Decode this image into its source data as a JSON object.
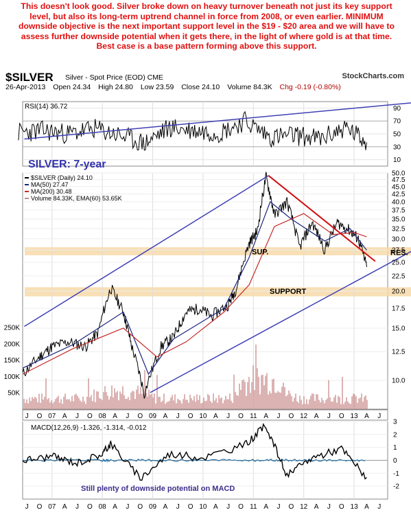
{
  "commentary": "This doesn't look good. Silver broke down on heavy turnover beneath not just its key support level, but also its long-term uptrend channel in force from 2008, or even earlier. MINIMUM downside objective is the next important support level in the $19 - $20 area and we will have to assess further downside potential when it gets there, in the light of where gold is at that time. Best case is a base pattern forming above this support.",
  "header": {
    "ticker": "$SILVER",
    "description": "Silver - Spot Price (EOD) CME",
    "brand": "StockCharts.com",
    "date": "26-Apr-2013",
    "open": "Open 24.34",
    "high": "High 24.80",
    "low": "Low 23.59",
    "close": "Close 24.10",
    "volume": "Volume 84.3K",
    "change": "Chg -0.19 (-0.80%)"
  },
  "colors": {
    "price": "#000000",
    "ma50": "#1a237e",
    "ma200": "#c62828",
    "trendline": "#3f3fb5",
    "resistance": "#d01010",
    "volume": "#c88a8a",
    "ema_volume": "#8b0000",
    "support_band": "#f7d9a8",
    "macd_signal": "#1f6fa8",
    "annotation_blue": "#3333b0"
  },
  "chart_data": [
    {
      "type": "line",
      "title": "RSI(14) 36.72",
      "yticks": [
        10,
        30,
        50,
        70,
        90
      ],
      "ylim": [
        0,
        100
      ],
      "series": [
        {
          "name": "RSI(14)",
          "x": [
            "2006-05",
            "2006-11",
            "2007-05",
            "2007-11",
            "2008-05",
            "2008-11",
            "2009-05",
            "2009-11",
            "2010-05",
            "2010-11",
            "2011-05",
            "2011-11",
            "2012-05",
            "2012-11",
            "2013-04"
          ],
          "values": [
            52,
            55,
            50,
            58,
            48,
            35,
            60,
            55,
            52,
            70,
            45,
            48,
            42,
            60,
            36.72
          ]
        }
      ]
    },
    {
      "type": "line",
      "title": "$SILVER (Daily) 24.10",
      "ylim": [
        8,
        50
      ],
      "yscale": "log",
      "yticks": [
        10.0,
        12.5,
        15.0,
        17.5,
        20.0,
        22.5,
        25.0,
        27.5,
        30.0,
        32.5,
        35.0,
        37.5,
        40.0,
        42.5,
        45.0,
        47.5,
        50.0
      ],
      "volume_ticks": [
        "50K",
        "100K",
        "150K",
        "200K",
        "250K"
      ],
      "x_labels": [
        "J",
        "O",
        "07",
        "A",
        "J",
        "O",
        "08",
        "A",
        "J",
        "O",
        "09",
        "A",
        "J",
        "O",
        "10",
        "A",
        "J",
        "O",
        "11",
        "A",
        "J",
        "O",
        "12",
        "A",
        "J",
        "O",
        "13",
        "A",
        "J"
      ],
      "legend": [
        "$SILVER (Daily) 24.10",
        "MA(50) 27.47",
        "MA(200) 30.48",
        "Volume 84.33K, EMA(60) 53.65K"
      ],
      "annotations": {
        "title": "SILVER: 7-year",
        "sup": "SUP.",
        "res": "RES.",
        "support": "SUPPORT"
      },
      "series": [
        {
          "name": "$SILVER (Daily)",
          "x": [
            "2006-06",
            "2006-10",
            "2007-01",
            "2007-05",
            "2007-09",
            "2007-12",
            "2008-03",
            "2008-06",
            "2008-08",
            "2008-11",
            "2009-03",
            "2009-06",
            "2009-09",
            "2009-12",
            "2010-03",
            "2010-07",
            "2010-09",
            "2010-12",
            "2011-02",
            "2011-04",
            "2011-06",
            "2011-09",
            "2011-12",
            "2012-03",
            "2012-06",
            "2012-09",
            "2012-12",
            "2013-02",
            "2013-04"
          ],
          "values": [
            10.5,
            12.0,
            13.0,
            13.5,
            13.0,
            14.5,
            20.5,
            17.0,
            13.0,
            9.0,
            13.0,
            14.0,
            17.0,
            17.5,
            16.5,
            18.0,
            20.5,
            29.0,
            32.0,
            48.5,
            36.0,
            40.0,
            28.0,
            34.0,
            27.5,
            34.0,
            32.0,
            30.0,
            24.1
          ]
        },
        {
          "name": "MA(50)",
          "x": [
            "2006-06",
            "2007-06",
            "2008-06",
            "2008-12",
            "2009-06",
            "2010-06",
            "2010-12",
            "2011-05",
            "2011-10",
            "2012-06",
            "2012-12",
            "2013-04"
          ],
          "values": [
            11.0,
            13.2,
            17.0,
            10.5,
            13.8,
            17.5,
            26.0,
            40.0,
            35.0,
            29.5,
            32.5,
            27.47
          ]
        },
        {
          "name": "MA(200)",
          "x": [
            "2006-06",
            "2007-06",
            "2008-06",
            "2009-02",
            "2009-09",
            "2010-06",
            "2010-12",
            "2011-06",
            "2012-01",
            "2012-08",
            "2013-01",
            "2013-04"
          ],
          "values": [
            10.5,
            12.8,
            15.0,
            12.0,
            13.5,
            17.0,
            21.0,
            33.0,
            36.5,
            31.0,
            31.5,
            30.48
          ]
        }
      ]
    },
    {
      "type": "line",
      "title": "MACD(12,26,9) -1.326, -1.314, -0.012",
      "ylim": [
        -3,
        3
      ],
      "yticks": [
        -2,
        -1,
        0,
        1,
        2,
        3
      ],
      "annotation": "Still plenty of downside potential on MACD",
      "series": [
        {
          "name": "MACD",
          "x": [
            "2006-06",
            "2007-01",
            "2007-07",
            "2008-01",
            "2008-03",
            "2008-10",
            "2009-05",
            "2010-01",
            "2010-11",
            "2011-04",
            "2011-09",
            "2012-03",
            "2012-10",
            "2013-04"
          ],
          "values": [
            0.0,
            0.3,
            -0.2,
            0.5,
            1.3,
            -1.4,
            0.5,
            0.2,
            1.2,
            2.7,
            -1.2,
            0.2,
            0.9,
            -1.326
          ]
        }
      ]
    }
  ]
}
